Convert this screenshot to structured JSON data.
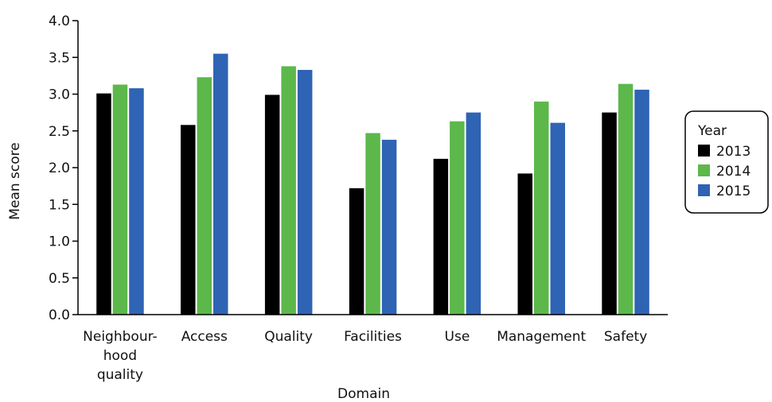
{
  "chart_data": {
    "type": "bar",
    "xlabel": "Domain",
    "ylabel": "Mean score",
    "ylim": [
      0,
      4.0
    ],
    "yticks": [
      "0.0",
      "0.5",
      "1.0",
      "1.5",
      "2.0",
      "2.5",
      "3.0",
      "3.5",
      "4.0"
    ],
    "categories": [
      [
        "Neighbour-",
        "hood",
        "quality"
      ],
      [
        "Access"
      ],
      [
        "Quality"
      ],
      [
        "Facilities"
      ],
      [
        "Use"
      ],
      [
        "Management"
      ],
      [
        "Safety"
      ]
    ],
    "legend": {
      "title": "Year",
      "position": "right"
    },
    "grid": false,
    "series": [
      {
        "name": "2013",
        "color": "#000000",
        "values": [
          3.01,
          2.58,
          2.99,
          1.72,
          2.12,
          1.92,
          2.75
        ]
      },
      {
        "name": "2014",
        "color": "#5cb84a",
        "values": [
          3.13,
          3.23,
          3.38,
          2.47,
          2.63,
          2.9,
          3.14
        ]
      },
      {
        "name": "2015",
        "color": "#2f63b4",
        "values": [
          3.08,
          3.55,
          3.33,
          2.38,
          2.75,
          2.61,
          3.06
        ]
      }
    ]
  }
}
